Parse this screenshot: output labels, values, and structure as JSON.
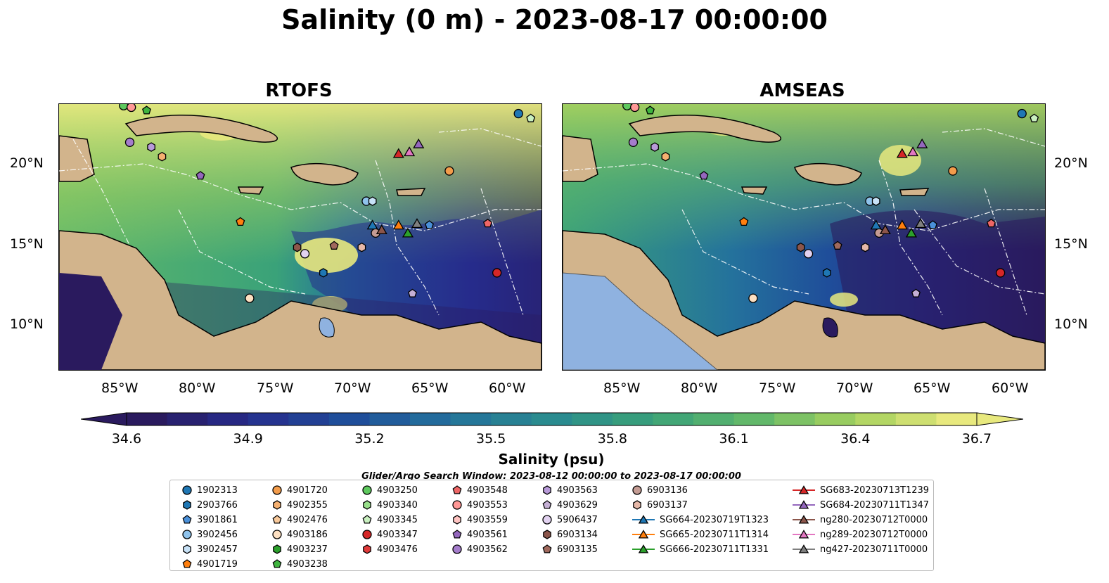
{
  "title": "Salinity (0 m) - 2023-08-17 00:00:00",
  "panels": [
    {
      "title": "RTOFS"
    },
    {
      "title": "AMSEAS"
    }
  ],
  "lat_labels": [
    "20°N",
    "15°N",
    "10°N"
  ],
  "lon_labels": [
    "85°W",
    "80°W",
    "75°W",
    "70°W",
    "65°W",
    "60°W"
  ],
  "colorbar": {
    "label": "Salinity (psu)",
    "ticks": [
      "34.6",
      "34.9",
      "35.2",
      "35.5",
      "35.8",
      "36.1",
      "36.4",
      "36.7"
    ],
    "min": 34.6,
    "max": 36.7,
    "extend": "both",
    "colormap": [
      "#2a1a5e",
      "#262c8c",
      "#1f4e9a",
      "#24729c",
      "#2a8b8f",
      "#3aa279",
      "#62b86a",
      "#a6d15e",
      "#e8e97e"
    ]
  },
  "search_window": "Glider/Argo Search Window: 2023-08-12 00:00:00 to 2023-08-17 00:00:00",
  "legend": [
    {
      "label": "1902313",
      "marker": "circle",
      "color": "#1f77b4"
    },
    {
      "label": "2903766",
      "marker": "hexagon",
      "color": "#1f77b4"
    },
    {
      "label": "3901861",
      "marker": "pentagon",
      "color": "#4a90d9"
    },
    {
      "label": "3902456",
      "marker": "circle",
      "color": "#8fc3ec"
    },
    {
      "label": "3902457",
      "marker": "hexagon",
      "color": "#c8e2f7"
    },
    {
      "label": "4901719",
      "marker": "pentagon",
      "color": "#ff7f0e"
    },
    {
      "label": "4901720",
      "marker": "circle",
      "color": "#f39c4b"
    },
    {
      "label": "4902355",
      "marker": "hexagon",
      "color": "#f5b070"
    },
    {
      "label": "4902476",
      "marker": "pentagon",
      "color": "#f8c99b"
    },
    {
      "label": "4903186",
      "marker": "circle",
      "color": "#fde0c2"
    },
    {
      "label": "4903237",
      "marker": "hexagon",
      "color": "#2ca02c"
    },
    {
      "label": "4903238",
      "marker": "pentagon",
      "color": "#3fb43f"
    },
    {
      "label": "4903250",
      "marker": "circle",
      "color": "#5ec95e"
    },
    {
      "label": "4903340",
      "marker": "hexagon",
      "color": "#98df8a"
    },
    {
      "label": "4903345",
      "marker": "pentagon",
      "color": "#c9f0c0"
    },
    {
      "label": "4903347",
      "marker": "circle",
      "color": "#d62728"
    },
    {
      "label": "4903476",
      "marker": "hexagon",
      "color": "#e03a3a"
    },
    {
      "label": "4903548",
      "marker": "pentagon",
      "color": "#ee6666"
    },
    {
      "label": "4903553",
      "marker": "circle",
      "color": "#ff9896"
    },
    {
      "label": "4903559",
      "marker": "hexagon",
      "color": "#ffc4c2"
    },
    {
      "label": "4903561",
      "marker": "pentagon",
      "color": "#9467bd"
    },
    {
      "label": "4903562",
      "marker": "circle",
      "color": "#a57dcc"
    },
    {
      "label": "4903563",
      "marker": "hexagon",
      "color": "#b89ad9"
    },
    {
      "label": "4903629",
      "marker": "pentagon",
      "color": "#c5b0d5"
    },
    {
      "label": "5906437",
      "marker": "circle",
      "color": "#e2d2f0"
    },
    {
      "label": "6903134",
      "marker": "hexagon",
      "color": "#8c564b"
    },
    {
      "label": "6903135",
      "marker": "pentagon",
      "color": "#a0695d"
    },
    {
      "label": "6903136",
      "marker": "circle",
      "color": "#c49c94"
    },
    {
      "label": "6903137",
      "marker": "hexagon",
      "color": "#e6b8a8"
    },
    {
      "label": "SG664-20230719T1323",
      "marker": "triangle-line",
      "color": "#1f77b4"
    },
    {
      "label": "SG665-20230711T1314",
      "marker": "triangle-line",
      "color": "#ff7f0e"
    },
    {
      "label": "SG666-20230711T1331",
      "marker": "triangle-line",
      "color": "#2ca02c"
    },
    {
      "label": "SG683-20230713T1239",
      "marker": "triangle-line",
      "color": "#d62728"
    },
    {
      "label": "SG684-20230711T1347",
      "marker": "triangle-line",
      "color": "#9467bd"
    },
    {
      "label": "ng280-20230712T0000",
      "marker": "triangle-line",
      "color": "#8c564b"
    },
    {
      "label": "ng289-20230712T0000",
      "marker": "triangle-line",
      "color": "#e377c2"
    },
    {
      "label": "ng427-20230711T0000",
      "marker": "triangle-line",
      "color": "#7f7f7f"
    }
  ],
  "markers_on_map": [
    {
      "id": "1902313",
      "lon": -59.3,
      "lat": 23.1
    },
    {
      "id": "4903345",
      "lon": -58.5,
      "lat": 22.8
    },
    {
      "id": "4903250",
      "lon": -85.0,
      "lat": 23.6
    },
    {
      "id": "4903553",
      "lon": -84.5,
      "lat": 23.5
    },
    {
      "id": "4903238",
      "lon": -83.5,
      "lat": 23.3
    },
    {
      "id": "4903562",
      "lon": -84.6,
      "lat": 21.3
    },
    {
      "id": "4903563",
      "lon": -83.2,
      "lat": 21.0
    },
    {
      "id": "4902355",
      "lon": -82.5,
      "lat": 20.4
    },
    {
      "id": "4903561",
      "lon": -80.0,
      "lat": 19.2
    },
    {
      "id": "4901720",
      "lon": -63.8,
      "lat": 19.5
    },
    {
      "id": "3902456",
      "lon": -69.2,
      "lat": 17.6
    },
    {
      "id": "3902457",
      "lon": -68.8,
      "lat": 17.6
    },
    {
      "id": "4901719",
      "lon": -77.4,
      "lat": 16.3
    },
    {
      "id": "SG664-20230719T1323",
      "lon": -68.8,
      "lat": 16.1
    },
    {
      "id": "6903136",
      "lon": -68.6,
      "lat": 15.6
    },
    {
      "id": "ng280-20230712T0000",
      "lon": -68.2,
      "lat": 15.8
    },
    {
      "id": "SG665-20230711T1314",
      "lon": -67.1,
      "lat": 16.1
    },
    {
      "id": "SG666-20230711T1331",
      "lon": -66.5,
      "lat": 15.6
    },
    {
      "id": "ng427-20230711T0000",
      "lon": -65.9,
      "lat": 16.2
    },
    {
      "id": "3901861",
      "lon": -65.1,
      "lat": 16.1
    },
    {
      "id": "SG683-20230713T1239",
      "lon": -67.1,
      "lat": 20.6
    },
    {
      "id": "ng289-20230712T0000",
      "lon": -66.4,
      "lat": 20.7
    },
    {
      "id": "SG684-20230711T1347",
      "lon": -65.8,
      "lat": 21.2
    },
    {
      "id": "6903134",
      "lon": -73.7,
      "lat": 14.7
    },
    {
      "id": "5906437",
      "lon": -73.2,
      "lat": 14.3
    },
    {
      "id": "6903135",
      "lon": -71.3,
      "lat": 14.8
    },
    {
      "id": "6903137",
      "lon": -69.5,
      "lat": 14.7
    },
    {
      "id": "2903766",
      "lon": -72.0,
      "lat": 13.1
    },
    {
      "id": "4903347",
      "lon": -60.7,
      "lat": 13.1
    },
    {
      "id": "4903548",
      "lon": -61.3,
      "lat": 16.2
    },
    {
      "id": "4903629",
      "lon": -66.2,
      "lat": 11.8
    },
    {
      "id": "4903186",
      "lon": -76.8,
      "lat": 11.5
    }
  ]
}
